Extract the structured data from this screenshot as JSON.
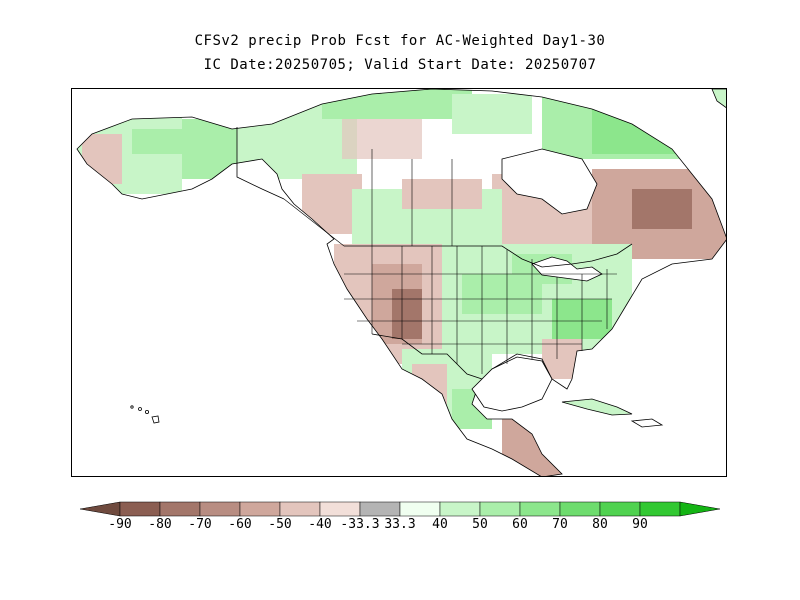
{
  "title": {
    "line1": "CFSv2 precip Prob Fcst for AC-Weighted Day1-30",
    "line2": "IC Date:20250705; Valid Start Date: 20250707"
  },
  "colorbar": {
    "bins": [
      {
        "color": "#6f4a3e"
      },
      {
        "color": "#8b5e52"
      },
      {
        "color": "#a3766a"
      },
      {
        "color": "#b88d82"
      },
      {
        "color": "#cfa79c"
      },
      {
        "color": "#e3c5bd"
      },
      {
        "color": "#f2dfd9"
      },
      {
        "color": "#b4b4b4"
      },
      {
        "color": "#f0fff0"
      },
      {
        "color": "#c8f5c8"
      },
      {
        "color": "#aaeeaa"
      },
      {
        "color": "#8ce68c"
      },
      {
        "color": "#6edc6e"
      },
      {
        "color": "#50d250"
      },
      {
        "color": "#32c832"
      },
      {
        "color": "#14b414"
      }
    ],
    "tick_labels": [
      "-90",
      "-80",
      "-70",
      "-60",
      "-50",
      "-40",
      "-33.3",
      "33.3",
      "40",
      "50",
      "60",
      "70",
      "80",
      "90"
    ]
  },
  "palette": {
    "water": "#ffffff",
    "land_neutral": "#ffffff",
    "coast": "#000000",
    "green_light": "#c8f5c8",
    "green_mid": "#aaeeaa",
    "green_strong": "#8ce68c",
    "brown_light": "#e3c5bd",
    "brown_mid": "#cfa79c",
    "brown_strong": "#a3766a"
  }
}
